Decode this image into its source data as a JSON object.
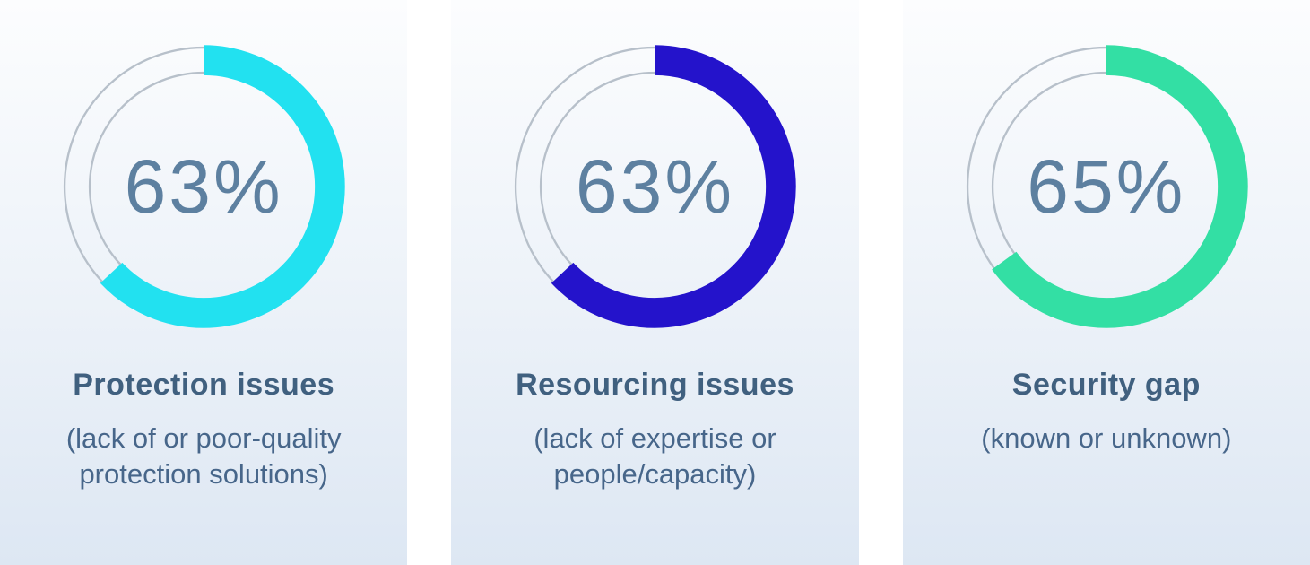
{
  "styles": {
    "track_color": "#b7c0ca",
    "value_text_color": "#5d80a0",
    "title_text_color": "#40607f"
  },
  "chart_data": [
    {
      "type": "pie",
      "variant": "donut",
      "value": 63,
      "label": "63%",
      "title": "Protection issues",
      "subtitle": "(lack of or poor-quality protection solutions)",
      "color": "#22e1f0",
      "start_angle_deg": 0,
      "direction": "clockwise"
    },
    {
      "type": "pie",
      "variant": "donut",
      "value": 63,
      "label": "63%",
      "title": "Resourcing issues",
      "subtitle": "(lack of expertise or people/capacity)",
      "color": "#2413cb",
      "start_angle_deg": 0,
      "direction": "clockwise"
    },
    {
      "type": "pie",
      "variant": "donut",
      "value": 65,
      "label": "65%",
      "title": "Security gap",
      "subtitle": "(known or unknown)",
      "color": "#33dfa4",
      "start_angle_deg": 0,
      "direction": "clockwise"
    }
  ]
}
